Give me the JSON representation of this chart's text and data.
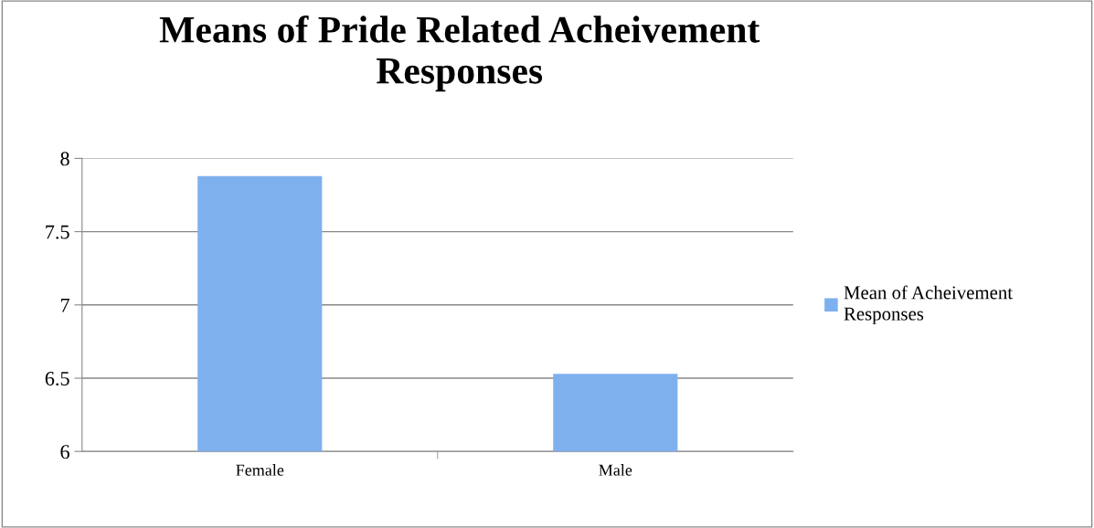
{
  "chart_data": {
    "type": "bar",
    "title": "Means of Pride Related Acheivement Responses",
    "categories": [
      "Female",
      "Male"
    ],
    "series": [
      {
        "name": "Mean of Acheivement Responses",
        "color": "#7fb0ee",
        "values": [
          7.88,
          6.53
        ]
      }
    ],
    "ylim": [
      6,
      8
    ],
    "yticks": [
      6,
      6.5,
      7,
      7.5,
      8
    ],
    "grid": "y",
    "legend": "right"
  }
}
